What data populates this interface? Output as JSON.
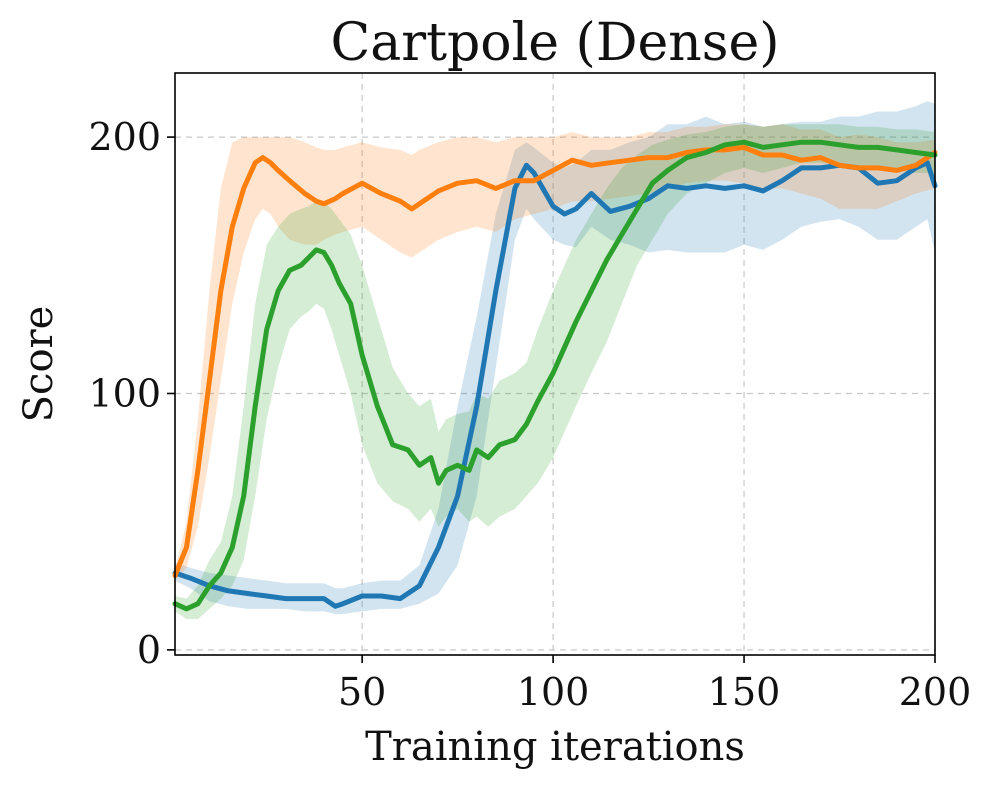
{
  "chart_data": {
    "type": "line",
    "title": "Cartpole (Dense)",
    "xlabel": "Training iterations",
    "ylabel": "Score",
    "xlim": [
      1,
      200
    ],
    "ylim": [
      -2,
      225
    ],
    "xticks": [
      50,
      100,
      150,
      200
    ],
    "xtick_labels": [
      "50",
      "100",
      "150",
      "200"
    ],
    "yticks": [
      0,
      100,
      200
    ],
    "ytick_labels": [
      "0",
      "100",
      "200"
    ],
    "grid": true,
    "series": [
      {
        "name": "blue",
        "color": "#1f77b4",
        "band_opacity": 0.2,
        "x": [
          1,
          5,
          10,
          15,
          20,
          25,
          30,
          35,
          40,
          43,
          45,
          50,
          55,
          60,
          65,
          70,
          75,
          80,
          85,
          90,
          93,
          95,
          100,
          103,
          106,
          110,
          115,
          120,
          125,
          130,
          135,
          140,
          145,
          150,
          155,
          160,
          165,
          170,
          175,
          180,
          185,
          190,
          195,
          198,
          200
        ],
        "mean": [
          30,
          28,
          25,
          23,
          22,
          21,
          20,
          20,
          20,
          17,
          18,
          21,
          21,
          20,
          25,
          40,
          60,
          95,
          140,
          180,
          189,
          186,
          173,
          170,
          172,
          178,
          171,
          173,
          176,
          181,
          180,
          181,
          180,
          181,
          179,
          183,
          188,
          188,
          189,
          188,
          182,
          183,
          188,
          190,
          181
        ],
        "lower": [
          27,
          24,
          19,
          17,
          16,
          16,
          16,
          15,
          15,
          14,
          14,
          15,
          16,
          16,
          18,
          22,
          33,
          60,
          110,
          160,
          172,
          168,
          160,
          158,
          157,
          165,
          160,
          158,
          155,
          156,
          155,
          155,
          155,
          158,
          156,
          160,
          165,
          167,
          168,
          165,
          160,
          160,
          165,
          168,
          155
        ],
        "upper": [
          34,
          32,
          30,
          29,
          28,
          27,
          26,
          26,
          26,
          24,
          24,
          26,
          27,
          27,
          33,
          55,
          95,
          130,
          170,
          195,
          198,
          196,
          190,
          188,
          190,
          195,
          195,
          198,
          200,
          205,
          205,
          208,
          205,
          206,
          204,
          205,
          206,
          206,
          208,
          208,
          210,
          210,
          212,
          214,
          213
        ]
      },
      {
        "name": "orange",
        "color": "#ff7f0e",
        "band_opacity": 0.2,
        "x": [
          1,
          4,
          7,
          10,
          13,
          16,
          19,
          22,
          24,
          26,
          28,
          31,
          35,
          38,
          40,
          43,
          45,
          50,
          55,
          60,
          63,
          65,
          70,
          75,
          80,
          85,
          90,
          95,
          100,
          105,
          110,
          115,
          120,
          125,
          130,
          135,
          140,
          145,
          150,
          155,
          160,
          165,
          170,
          175,
          180,
          185,
          190,
          195,
          200
        ],
        "mean": [
          29,
          40,
          70,
          105,
          140,
          165,
          180,
          190,
          192,
          190,
          187,
          183,
          178,
          175,
          174,
          176,
          178,
          182,
          178,
          175,
          172,
          174,
          179,
          182,
          183,
          180,
          183,
          183,
          187,
          191,
          189,
          190,
          191,
          192,
          192,
          194,
          195,
          195,
          196,
          193,
          193,
          191,
          192,
          189,
          188,
          188,
          187,
          189,
          194
        ],
        "lower": [
          27,
          32,
          48,
          75,
          105,
          135,
          155,
          168,
          172,
          170,
          165,
          160,
          158,
          158,
          160,
          162,
          163,
          165,
          160,
          155,
          153,
          155,
          160,
          163,
          165,
          163,
          168,
          170,
          172,
          175,
          175,
          176,
          177,
          178,
          180,
          182,
          183,
          183,
          182,
          180,
          180,
          178,
          176,
          172,
          172,
          172,
          175,
          178,
          180
        ],
        "upper": [
          31,
          50,
          90,
          140,
          180,
          198,
          200,
          200,
          200,
          200,
          200,
          200,
          198,
          196,
          195,
          195,
          196,
          198,
          196,
          195,
          193,
          195,
          198,
          200,
          200,
          198,
          200,
          200,
          200,
          202,
          200,
          200,
          200,
          202,
          202,
          204,
          204,
          205,
          205,
          204,
          205,
          203,
          203,
          200,
          201,
          200,
          198,
          198,
          199
        ]
      },
      {
        "name": "green",
        "color": "#2ca02c",
        "band_opacity": 0.2,
        "x": [
          1,
          4,
          7,
          10,
          13,
          16,
          19,
          22,
          25,
          28,
          31,
          34,
          36,
          38,
          40,
          42,
          44,
          47,
          50,
          54,
          58,
          62,
          65,
          68,
          70,
          72,
          75,
          78,
          80,
          83,
          86,
          90,
          93,
          96,
          100,
          103,
          106,
          110,
          114,
          118,
          122,
          126,
          130,
          135,
          140,
          145,
          150,
          155,
          160,
          165,
          170,
          175,
          180,
          185,
          190,
          195,
          200
        ],
        "mean": [
          18,
          16,
          18,
          25,
          30,
          40,
          60,
          95,
          125,
          140,
          148,
          150,
          153,
          156,
          155,
          150,
          143,
          135,
          115,
          95,
          80,
          78,
          72,
          75,
          65,
          70,
          72,
          70,
          78,
          75,
          80,
          82,
          88,
          97,
          108,
          118,
          128,
          140,
          152,
          162,
          172,
          182,
          187,
          192,
          194,
          197,
          198,
          196,
          197,
          198,
          198,
          197,
          196,
          196,
          195,
          194,
          193
        ],
        "lower": [
          15,
          12,
          12,
          16,
          20,
          25,
          35,
          60,
          90,
          110,
          125,
          130,
          132,
          135,
          133,
          125,
          115,
          100,
          80,
          65,
          58,
          55,
          50,
          55,
          48,
          52,
          55,
          50,
          52,
          48,
          52,
          55,
          60,
          65,
          75,
          85,
          95,
          108,
          120,
          135,
          150,
          160,
          170,
          178,
          182,
          186,
          188,
          186,
          188,
          190,
          190,
          189,
          188,
          188,
          187,
          186,
          186
        ],
        "upper": [
          21,
          20,
          25,
          35,
          42,
          60,
          95,
          135,
          158,
          165,
          170,
          172,
          173,
          175,
          175,
          172,
          168,
          162,
          150,
          130,
          110,
          100,
          95,
          98,
          85,
          90,
          92,
          93,
          100,
          98,
          105,
          108,
          112,
          125,
          140,
          150,
          160,
          170,
          180,
          188,
          193,
          197,
          199,
          201,
          202,
          204,
          205,
          204,
          205,
          205,
          205,
          205,
          204,
          204,
          203,
          203,
          202
        ]
      }
    ]
  }
}
